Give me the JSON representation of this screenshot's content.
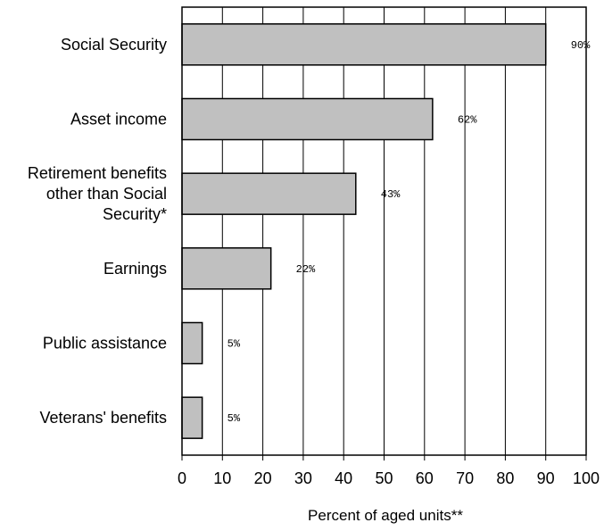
{
  "chart_data": {
    "type": "bar",
    "orientation": "horizontal",
    "categories": [
      [
        "Social Security"
      ],
      [
        "Asset income"
      ],
      [
        "Retirement benefits",
        "other than Social",
        "Security*"
      ],
      [
        "Earnings"
      ],
      [
        "Public assistance"
      ],
      [
        "Veterans' benefits"
      ]
    ],
    "values": [
      90,
      62,
      43,
      22,
      5,
      5
    ],
    "data_labels": [
      "90%",
      "62%",
      "43%",
      "22%",
      "5%",
      "5%"
    ],
    "xlabel": "Percent of aged units**",
    "xlim": [
      0,
      100
    ],
    "xticks": [
      0,
      10,
      20,
      30,
      40,
      50,
      60,
      70,
      80,
      90,
      100
    ],
    "xtick_labels": [
      "0",
      "10",
      "20",
      "30",
      "40",
      "50",
      "60",
      "70",
      "80",
      "90",
      "100"
    ],
    "grid": "vertical",
    "bar_color": "#c0c0c0",
    "bar_edge_color": "#000000"
  }
}
